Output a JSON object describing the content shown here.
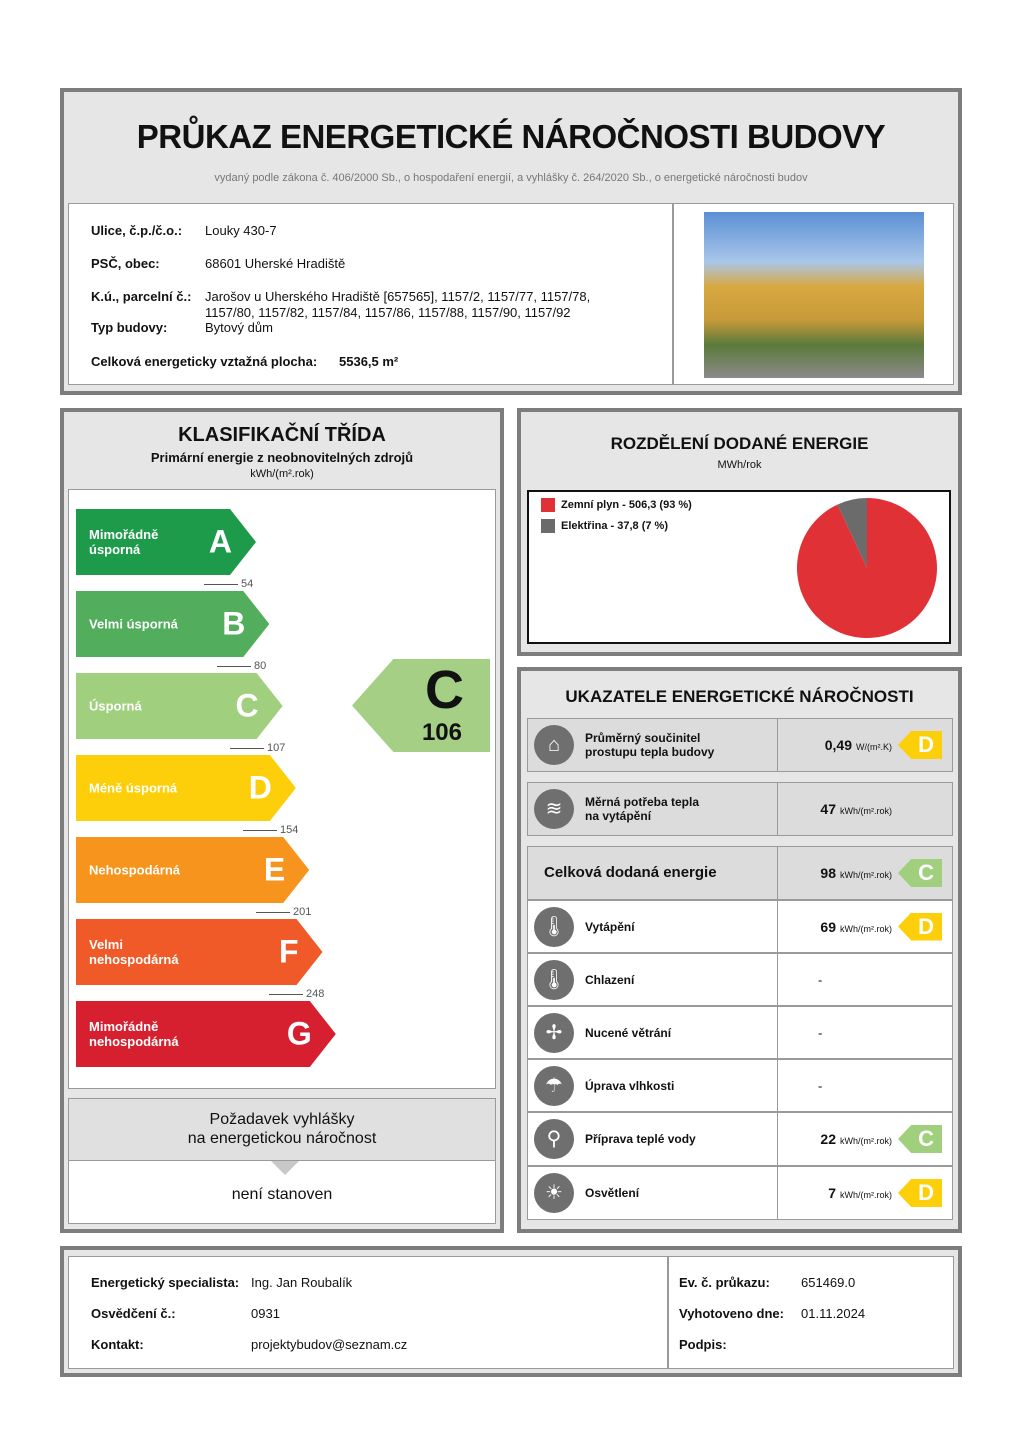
{
  "header": {
    "title": "PRŮKAZ ENERGETICKÉ NÁROČNOSTI BUDOVY",
    "subtitle": "vydaný podle zákona č. 406/2000 Sb., o hospodaření energií, a vyhlášky č. 264/2020 Sb., o energetické náročnosti budov"
  },
  "building": {
    "street_label": "Ulice, č.p./č.o.:",
    "street": "Louky 430-7",
    "psc_label": "PSČ, obec:",
    "psc": "68601 Uherské Hradiště",
    "ku_label": "K.ú., parcelní č.:",
    "ku_line1": "Jarošov u Uherského Hradiště [657565], 1157/2, 1157/77, 1157/78,",
    "ku_line2": "1157/80, 1157/82, 1157/84, 1157/86, 1157/88, 1157/90, 1157/92",
    "type_label": "Typ budovy:",
    "type": "Bytový dům",
    "area_label": "Celková energeticky vztažná plocha:",
    "area": "5536,5 m²"
  },
  "classification": {
    "title": "KLASIFIKAČNÍ TŘÍDA",
    "subtitle": "Primární energie z neobnovitelných zdrojů",
    "unit": "kWh/(m².rok)",
    "classes": [
      {
        "name": "Mimořádně úsporná",
        "letter": "A",
        "color": "#1e9a4b"
      },
      {
        "name": "Velmi úsporná",
        "letter": "B",
        "color": "#52ad5c"
      },
      {
        "name": "Úsporná",
        "letter": "C",
        "color": "#a0cf7e"
      },
      {
        "name": "Méně úsporná",
        "letter": "D",
        "color": "#fdcf0a"
      },
      {
        "name": "Nehospodárná",
        "letter": "E",
        "color": "#f7941d"
      },
      {
        "name": "Velmi nehospodárná",
        "letter": "F",
        "color": "#ef5a28"
      },
      {
        "name": "Mimořádně nehospodárná",
        "letter": "G",
        "color": "#d61f2f"
      }
    ],
    "thresholds": [
      "54",
      "80",
      "107",
      "154",
      "201",
      "248"
    ],
    "result_letter": "C",
    "result_value": "106",
    "result_color": "#a4cf84",
    "requirement_title_1": "Požadavek vyhlášky",
    "requirement_title_2": "na energetickou náročnost",
    "requirement_value": "není stanoven"
  },
  "distribution": {
    "title": "ROZDĚLENÍ DODANÉ ENERGIE",
    "unit": "MWh/rok",
    "chart_data": {
      "type": "pie",
      "slices": [
        {
          "name": "Zemní plyn",
          "value": 506.3,
          "percent": 93,
          "color": "#e03236"
        },
        {
          "name": "Elektřina",
          "value": 37.8,
          "percent": 7,
          "color": "#6b6b6b"
        }
      ],
      "legend": [
        "Zemní plyn - 506,3 (93 %)",
        "Elektřina - 37,8 (7 %)"
      ],
      "legend_placement": "top-left"
    }
  },
  "indicators": {
    "title": "UKAZATELE ENERGETICKÉ NÁROČNOSTI",
    "rows": [
      {
        "icon": "house-icon",
        "glyph": "⌂",
        "label1": "Průměrný součinitel",
        "label2": "prostupu tepla budovy",
        "value": "0,49",
        "unit": "W/(m².K)",
        "class": "D",
        "color": "#fdcf0a"
      },
      {
        "icon": "heat-demand-icon",
        "glyph": "≋",
        "label1": "Měrná potřeba tepla",
        "label2": "na vytápění",
        "value": "47",
        "unit": "kWh/(m².rok)",
        "class": "",
        "color": ""
      },
      {
        "icon": "",
        "glyph": "",
        "label1": "Celková dodaná energie",
        "label2": "",
        "value": "98",
        "unit": "kWh/(m².rok)",
        "class": "C",
        "color": "#a0cf7e"
      },
      {
        "icon": "heating-thermometer-icon",
        "glyph": "🌡",
        "label1": "Vytápění",
        "label2": "",
        "value": "69",
        "unit": "kWh/(m².rok)",
        "class": "D",
        "color": "#fdcf0a"
      },
      {
        "icon": "cooling-thermometer-icon",
        "glyph": "🌡",
        "label1": "Chlazení",
        "label2": "",
        "value": "-",
        "unit": "",
        "class": "",
        "color": ""
      },
      {
        "icon": "fan-icon",
        "glyph": "✢",
        "label1": "Nucené větrání",
        "label2": "",
        "value": "-",
        "unit": "",
        "class": "",
        "color": ""
      },
      {
        "icon": "humidity-icon",
        "glyph": "☂",
        "label1": "Úprava vlhkosti",
        "label2": "",
        "value": "-",
        "unit": "",
        "class": "",
        "color": ""
      },
      {
        "icon": "water-tap-icon",
        "glyph": "⚲",
        "label1": "Příprava teplé vody",
        "label2": "",
        "value": "22",
        "unit": "kWh/(m².rok)",
        "class": "C",
        "color": "#a0cf7e"
      },
      {
        "icon": "light-bulb-icon",
        "glyph": "☀",
        "label1": "Osvětlení",
        "label2": "",
        "value": "7",
        "unit": "kWh/(m².rok)",
        "class": "D",
        "color": "#fdcf0a"
      }
    ]
  },
  "footer": {
    "specialist_label": "Energetický specialista:",
    "specialist": "Ing. Jan Roubalík",
    "cert_label": "Osvědčení č.:",
    "cert": "0931",
    "contact_label": "Kontakt:",
    "contact": "projektybudov@seznam.cz",
    "ev_label": "Ev. č. průkazu:",
    "ev": "651469.0",
    "date_label": "Vyhotoveno dne:",
    "date": "01.11.2024",
    "sign_label": "Podpis:"
  }
}
